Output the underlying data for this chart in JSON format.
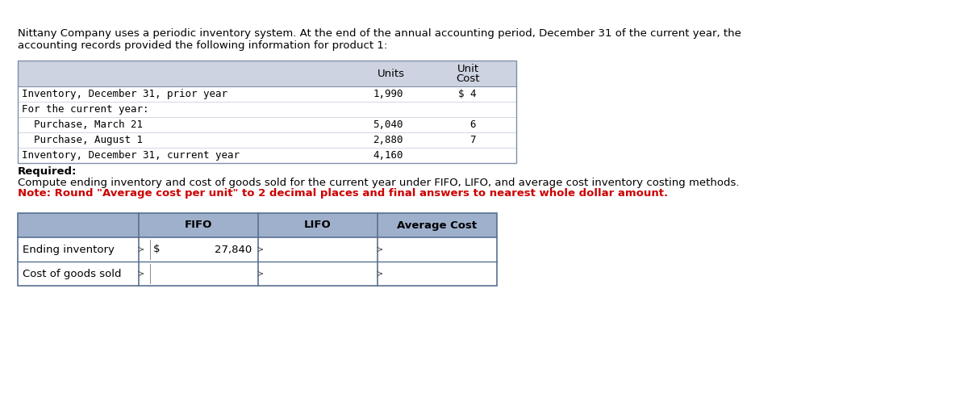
{
  "intro_text_line1": "Nittany Company uses a periodic inventory system. At the end of the annual accounting period, December 31 of the current year, the",
  "intro_text_line2": "accounting records provided the following information for product 1:",
  "top_table_header_units": "Units",
  "top_table_header_unit_cost_line1": "Unit",
  "top_table_header_unit_cost_line2": "Cost",
  "top_table_rows": [
    {
      "label": "Inventory, December 31, prior year",
      "indent": 0,
      "units": "1,990",
      "unit_cost": "$ 4"
    },
    {
      "label": "For the current year:",
      "indent": 0,
      "units": "",
      "unit_cost": ""
    },
    {
      "label": "  Purchase, March 21",
      "indent": 0,
      "units": "5,040",
      "unit_cost": "6"
    },
    {
      "label": "  Purchase, August 1",
      "indent": 0,
      "units": "2,880",
      "unit_cost": "7"
    },
    {
      "label": "Inventory, December 31, current year",
      "indent": 0,
      "units": "4,160",
      "unit_cost": ""
    }
  ],
  "required_label": "Required:",
  "required_text": "Compute ending inventory and cost of goods sold for the current year under FIFO, LIFO, and average cost inventory costing methods.",
  "note_text": "Note: Round \"Average cost per unit\" to 2 decimal places and final answers to nearest whole dollar amount.",
  "bottom_table_col_headers": [
    "FIFO",
    "LIFO",
    "Average Cost"
  ],
  "bottom_table_row_labels": [
    "Ending inventory",
    "Cost of goods sold"
  ],
  "top_table_bg": "#cdd3e0",
  "bottom_table_header_bg": "#9fb0cc",
  "bottom_table_border": "#5a7090",
  "note_color": "#cc0000",
  "body_font_size": 9.5,
  "mono_font_size": 9.0
}
